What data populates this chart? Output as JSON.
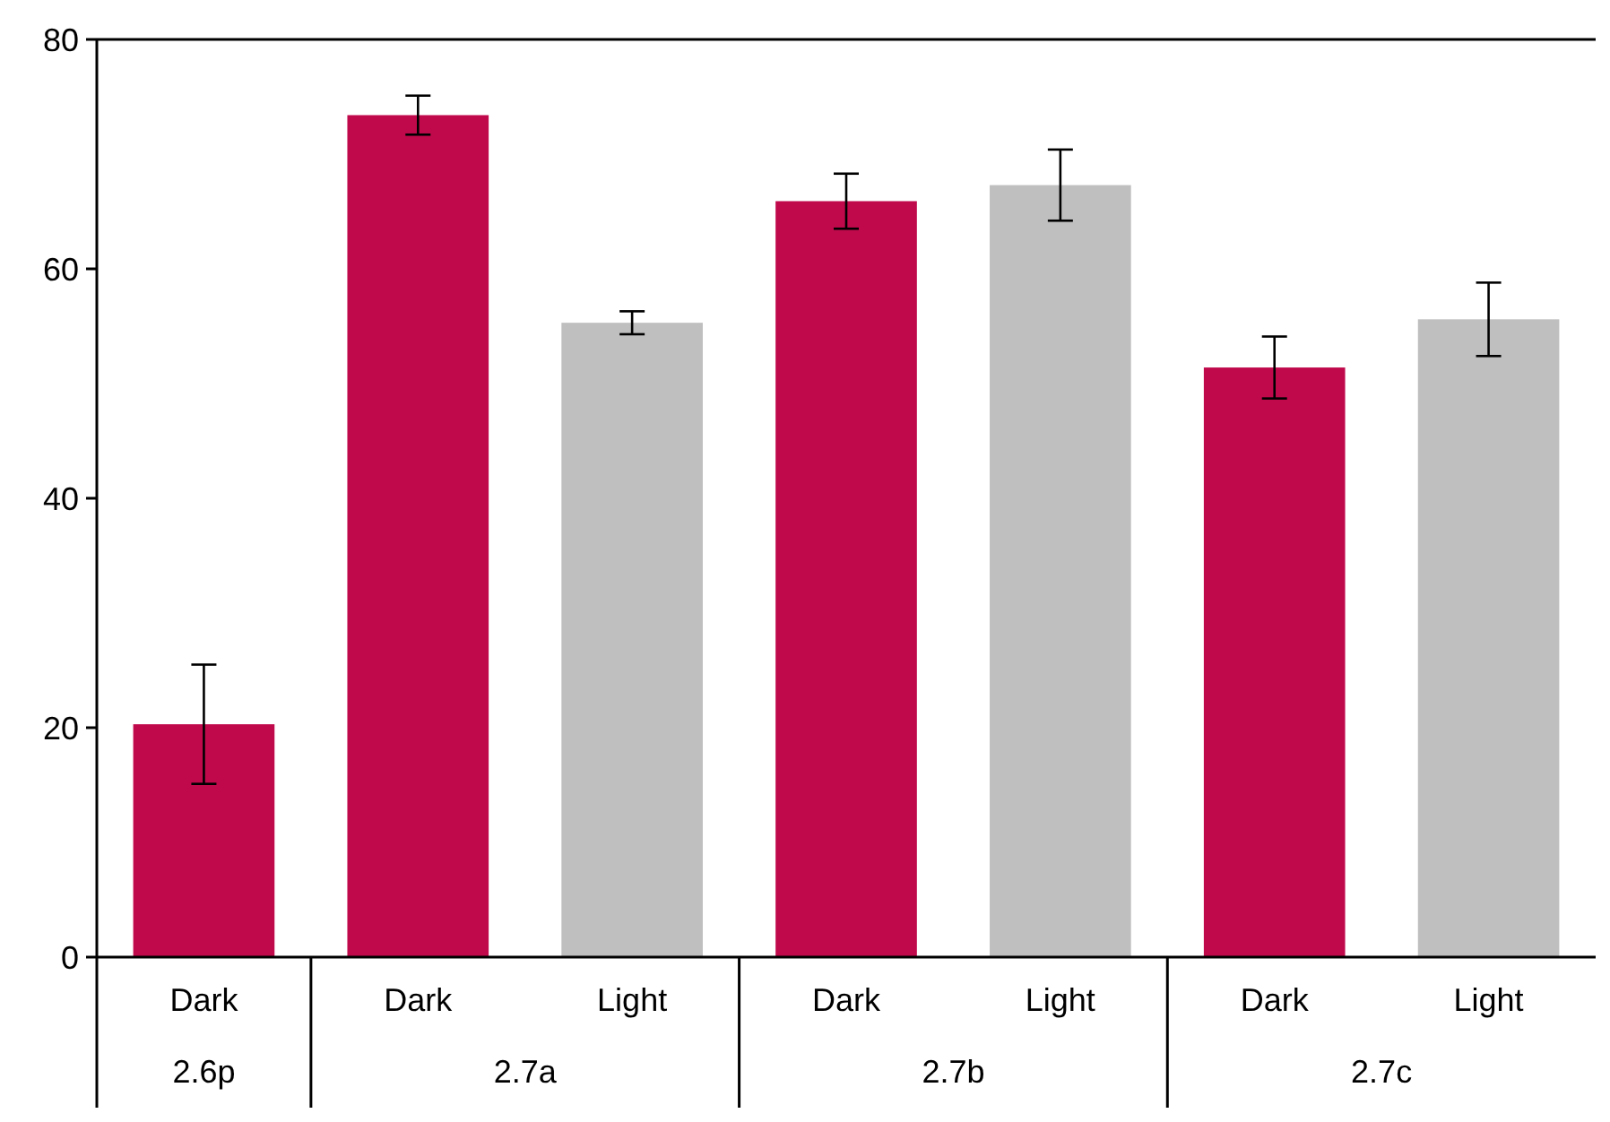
{
  "chart_data": {
    "type": "bar",
    "categories": [
      "2.6p",
      "2.7a",
      "2.7b",
      "2.7c"
    ],
    "series": [
      {
        "name": "Dark",
        "color": "#c0094b",
        "values": [
          20.3,
          73.4,
          65.9,
          51.4
        ],
        "errors": [
          5.2,
          1.7,
          2.4,
          2.7
        ]
      },
      {
        "name": "Light",
        "color": "#bfbfbf",
        "values": [
          null,
          55.3,
          67.3,
          55.6
        ],
        "errors": [
          null,
          1.0,
          3.1,
          3.2
        ]
      }
    ],
    "ylim": [
      0,
      80
    ],
    "yticks": [
      0,
      20,
      40,
      60,
      80
    ],
    "grid": false
  }
}
